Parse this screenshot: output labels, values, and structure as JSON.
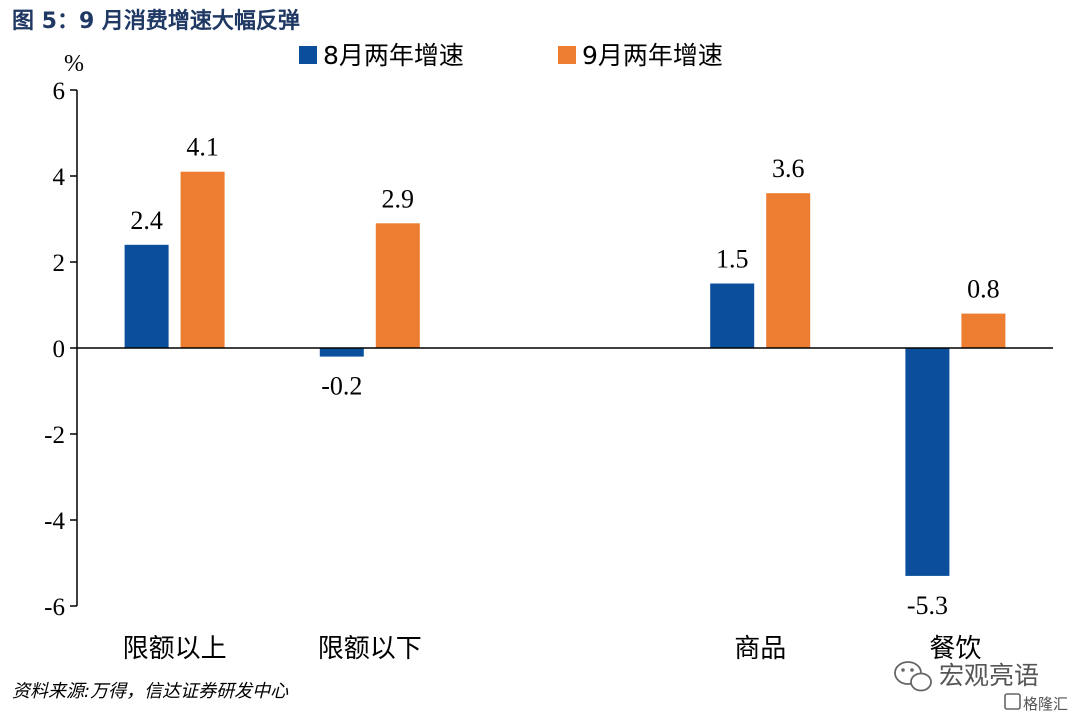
{
  "figure": {
    "title": "图 5：9 月消费增速大幅反弹",
    "source": "资料来源:万得，信达证券研发中心",
    "watermark": "宏观亮语",
    "watermark_badge": "格隆汇"
  },
  "colors": {
    "series_aug": "#0b4f9c",
    "series_sep": "#ed7d31",
    "title": "#1f3864"
  },
  "chart_data": {
    "type": "bar",
    "unit_label": "%",
    "categories": [
      "限额以上",
      "限额以下",
      "",
      "商品",
      "餐饮"
    ],
    "series": [
      {
        "name": "8月两年增速",
        "values": [
          2.4,
          -0.2,
          null,
          1.5,
          -5.3
        ],
        "labels": [
          "2.4",
          "-0.2",
          "",
          "1.5",
          "-5.3"
        ]
      },
      {
        "name": "9月两年增速",
        "values": [
          4.1,
          2.9,
          null,
          3.6,
          0.8
        ],
        "labels": [
          "4.1",
          "2.9",
          "",
          "3.6",
          "0.8"
        ]
      }
    ],
    "ylim": [
      -6,
      6
    ],
    "yticks": [
      -6,
      -4,
      -2,
      0,
      2,
      4,
      6
    ],
    "ytick_labels": [
      "-6",
      "-4",
      "-2",
      "0",
      "2",
      "4",
      "6"
    ],
    "legend_position": "top",
    "grid": false
  }
}
